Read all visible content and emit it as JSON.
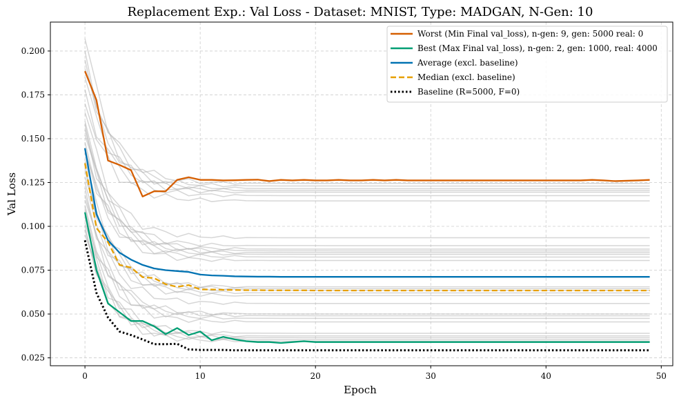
{
  "chart_data": {
    "type": "line",
    "title": "Replacement Exp.: Val Loss - Dataset: MNIST, Type: MADGAN, N-Gen: 10",
    "xlabel": "Epoch",
    "ylabel": "Val Loss",
    "xlim": [
      -3,
      51
    ],
    "ylim": [
      0.0205,
      0.2165
    ],
    "xticks": [
      0,
      10,
      20,
      30,
      40,
      50
    ],
    "yticks": [
      0.025,
      0.05,
      0.075,
      0.1,
      0.125,
      0.15,
      0.175,
      0.2
    ],
    "xtick_labels": [
      "0",
      "10",
      "20",
      "30",
      "40",
      "50"
    ],
    "ytick_labels": [
      "0.025",
      "0.050",
      "0.075",
      "0.100",
      "0.125",
      "0.150",
      "0.175",
      "0.200"
    ],
    "grid": true,
    "legend_position": "top-right",
    "x": [
      0,
      1,
      2,
      3,
      4,
      5,
      6,
      7,
      8,
      9,
      10,
      11,
      12,
      13,
      14,
      15,
      16,
      17,
      18,
      19,
      20,
      21,
      22,
      23,
      24,
      25,
      26,
      27,
      28,
      29,
      30,
      31,
      32,
      33,
      34,
      35,
      36,
      37,
      38,
      39,
      40,
      41,
      42,
      43,
      44,
      45,
      46,
      47,
      48,
      49
    ],
    "series": [
      {
        "name": "Worst (Min Final val_loss), n-gen: 9, gen: 5000 real: 0",
        "color": "#D55E00",
        "dash": "solid",
        "values": [
          0.1885,
          0.172,
          0.1375,
          0.135,
          0.132,
          0.117,
          0.12,
          0.12,
          0.1265,
          0.128,
          0.1265,
          0.1265,
          0.1262,
          0.1263,
          0.1265,
          0.1266,
          0.1258,
          0.1265,
          0.1262,
          0.1265,
          0.1262,
          0.1262,
          0.1265,
          0.1262,
          0.1262,
          0.1265,
          0.1262,
          0.1265,
          0.1262,
          0.1262,
          0.1262,
          0.1262,
          0.1262,
          0.1262,
          0.1262,
          0.1262,
          0.1262,
          0.1262,
          0.1262,
          0.1262,
          0.1262,
          0.1262,
          0.1262,
          0.1262,
          0.1265,
          0.1262,
          0.1258,
          0.126,
          0.1262,
          0.1265
        ]
      },
      {
        "name": "Best (Max Final val_loss), n-gen: 2, gen: 1000, real: 4000",
        "color": "#009E73",
        "dash": "solid",
        "values": [
          0.108,
          0.075,
          0.056,
          0.051,
          0.046,
          0.046,
          0.043,
          0.0385,
          0.042,
          0.038,
          0.04,
          0.035,
          0.037,
          0.0355,
          0.0345,
          0.034,
          0.034,
          0.0335,
          0.034,
          0.0345,
          0.034,
          0.034,
          0.034,
          0.034,
          0.034,
          0.034,
          0.034,
          0.034,
          0.034,
          0.034,
          0.034,
          0.034,
          0.034,
          0.034,
          0.034,
          0.034,
          0.034,
          0.034,
          0.034,
          0.034,
          0.034,
          0.034,
          0.034,
          0.034,
          0.034,
          0.034,
          0.034,
          0.034,
          0.034,
          0.034
        ]
      },
      {
        "name": "Average (excl. baseline)",
        "color": "#0072B2",
        "dash": "solid",
        "values": [
          0.1445,
          0.107,
          0.092,
          0.085,
          0.081,
          0.078,
          0.076,
          0.075,
          0.0745,
          0.074,
          0.0725,
          0.072,
          0.0718,
          0.0715,
          0.0714,
          0.0713,
          0.0713,
          0.0712,
          0.0712,
          0.0712,
          0.0712,
          0.0712,
          0.0712,
          0.0712,
          0.0712,
          0.0712,
          0.0712,
          0.0712,
          0.0712,
          0.0712,
          0.0712,
          0.0712,
          0.0712,
          0.0712,
          0.0712,
          0.0712,
          0.0712,
          0.0712,
          0.0712,
          0.0712,
          0.0712,
          0.0712,
          0.0712,
          0.0712,
          0.0712,
          0.0712,
          0.0712,
          0.0712,
          0.0712,
          0.0712
        ]
      },
      {
        "name": "Median (excl. baseline)",
        "color": "#E69F00",
        "dash": "dashed",
        "values": [
          0.136,
          0.099,
          0.091,
          0.078,
          0.0765,
          0.071,
          0.0705,
          0.067,
          0.0655,
          0.0665,
          0.064,
          0.064,
          0.0638,
          0.0637,
          0.0636,
          0.0636,
          0.0635,
          0.0635,
          0.0635,
          0.0635,
          0.0634,
          0.0634,
          0.0634,
          0.0634,
          0.0634,
          0.0634,
          0.0634,
          0.0634,
          0.0634,
          0.0634,
          0.0634,
          0.0634,
          0.0634,
          0.0634,
          0.0634,
          0.0634,
          0.0634,
          0.0634,
          0.0634,
          0.0634,
          0.0634,
          0.0634,
          0.0634,
          0.0634,
          0.0634,
          0.0634,
          0.0634,
          0.0634,
          0.0634,
          0.0634
        ]
      },
      {
        "name": "Baseline (R=5000, F=0)",
        "color": "#000000",
        "dash": "dotted",
        "values": [
          0.092,
          0.062,
          0.048,
          0.04,
          0.038,
          0.0355,
          0.0328,
          0.0328,
          0.033,
          0.0298,
          0.0295,
          0.0295,
          0.0295,
          0.0293,
          0.0293,
          0.0293,
          0.0293,
          0.0293,
          0.0293,
          0.0293,
          0.0293,
          0.0293,
          0.0293,
          0.0293,
          0.0293,
          0.0293,
          0.0293,
          0.0293,
          0.0293,
          0.0293,
          0.0293,
          0.0293,
          0.0293,
          0.0293,
          0.0293,
          0.0293,
          0.0293,
          0.0293,
          0.0293,
          0.0293,
          0.0293,
          0.0293,
          0.0293,
          0.0293,
          0.0293,
          0.0293,
          0.0293,
          0.0293,
          0.0293,
          0.0293
        ]
      }
    ],
    "background_series": {
      "color": "#b5b5b5",
      "runs": [
        {
          "start": 0.207,
          "final": 0.1245
        },
        {
          "start": 0.2,
          "final": 0.123
        },
        {
          "start": 0.195,
          "final": 0.1215
        },
        {
          "start": 0.19,
          "final": 0.1205
        },
        {
          "start": 0.185,
          "final": 0.1195
        },
        {
          "start": 0.178,
          "final": 0.1175
        },
        {
          "start": 0.17,
          "final": 0.1145
        },
        {
          "start": 0.165,
          "final": 0.0935
        },
        {
          "start": 0.16,
          "final": 0.089
        },
        {
          "start": 0.158,
          "final": 0.087
        },
        {
          "start": 0.155,
          "final": 0.086
        },
        {
          "start": 0.152,
          "final": 0.085
        },
        {
          "start": 0.148,
          "final": 0.084
        },
        {
          "start": 0.145,
          "final": 0.0825
        },
        {
          "start": 0.142,
          "final": 0.0805
        },
        {
          "start": 0.138,
          "final": 0.0655
        },
        {
          "start": 0.135,
          "final": 0.0645
        },
        {
          "start": 0.132,
          "final": 0.0635
        },
        {
          "start": 0.128,
          "final": 0.062
        },
        {
          "start": 0.125,
          "final": 0.0605
        },
        {
          "start": 0.122,
          "final": 0.056
        },
        {
          "start": 0.118,
          "final": 0.05
        },
        {
          "start": 0.115,
          "final": 0.049
        },
        {
          "start": 0.112,
          "final": 0.0475
        },
        {
          "start": 0.11,
          "final": 0.0455
        },
        {
          "start": 0.105,
          "final": 0.039
        },
        {
          "start": 0.102,
          "final": 0.0375
        },
        {
          "start": 0.1,
          "final": 0.0365
        },
        {
          "start": 0.098,
          "final": 0.0355
        },
        {
          "start": 0.095,
          "final": 0.0345
        }
      ]
    }
  }
}
